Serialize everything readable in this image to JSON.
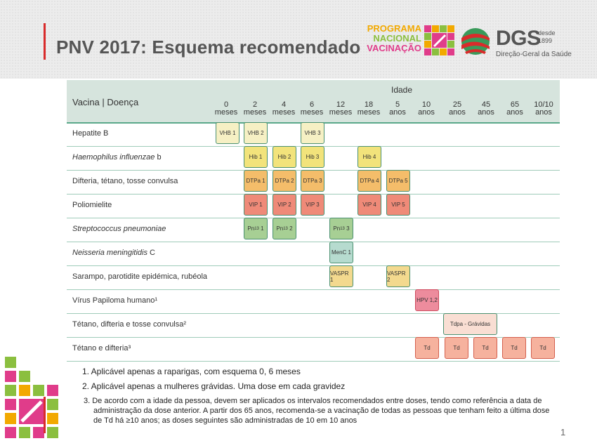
{
  "title": "PNV 2017: Esquema recomendado",
  "logos": {
    "pnv_line1": "PROGRAMA",
    "pnv_line2": "NACIONAL",
    "pnv_line3": "VACINAÇÃO",
    "dgs": "DGS",
    "dgs_desde": "desde",
    "dgs_year": "1899",
    "dgs_sub": "Direção-Geral da Saúde"
  },
  "table": {
    "col_header": "Vacina | Doença",
    "age_header": "Idade",
    "ages": [
      {
        "num": "0",
        "unit": "meses"
      },
      {
        "num": "2",
        "unit": "meses"
      },
      {
        "num": "4",
        "unit": "meses"
      },
      {
        "num": "6",
        "unit": "meses"
      },
      {
        "num": "12",
        "unit": "meses"
      },
      {
        "num": "18",
        "unit": "meses"
      },
      {
        "num": "5",
        "unit": "anos"
      },
      {
        "num": "10",
        "unit": "anos"
      },
      {
        "num": "25",
        "unit": "anos"
      },
      {
        "num": "45",
        "unit": "anos"
      },
      {
        "num": "65",
        "unit": "anos"
      },
      {
        "num": "10/10",
        "unit": "anos"
      }
    ],
    "rows": [
      {
        "label": "Hepatite B",
        "italic": "",
        "suffix": ""
      },
      {
        "label": "",
        "italic": "Haemophilus influenzae",
        "suffix": " b"
      },
      {
        "label": "Difteria, tétano, tosse convulsa",
        "italic": "",
        "suffix": ""
      },
      {
        "label": "Poliomielite",
        "italic": "",
        "suffix": ""
      },
      {
        "label": "",
        "italic": "Streptococcus pneumoniae",
        "suffix": ""
      },
      {
        "label": "",
        "italic": "Neisseria meningitidis",
        "suffix": " C"
      },
      {
        "label": "Sarampo, parotidite epidémica, rubéola",
        "italic": "",
        "suffix": ""
      },
      {
        "label": "Vírus Papiloma humano¹",
        "italic": "",
        "suffix": ""
      },
      {
        "label": "Tétano, difteria e tosse convulsa²",
        "italic": "",
        "suffix": ""
      },
      {
        "label": "Tétano e difteria³",
        "italic": "",
        "suffix": ""
      }
    ],
    "cells": {
      "vhb1": "VHB 1",
      "vhb2": "VHB 2",
      "vhb3": "VHB 3",
      "hib1": "Hib 1",
      "hib2": "Hib 2",
      "hib3": "Hib 3",
      "hib4": "Hib 4",
      "dtpa1": "DTPa 1",
      "dtpa2": "DTPa 2",
      "dtpa3": "DTPa 3",
      "dtpa4": "DTPa 4",
      "dtpa5": "DTPa 5",
      "vip1": "VIP 1",
      "vip2": "VIP 2",
      "vip3": "VIP 3",
      "vip4": "VIP 4",
      "vip5": "VIP 5",
      "pn_base": "Pn",
      "pn_sub": "13",
      "pn1_dose": "1",
      "pn2_dose": "2",
      "pn3_dose": "3",
      "menc1": "MenC 1",
      "vaspr1": "VASPR 1",
      "vaspr2": "VASPR 2",
      "hpv": "HPV 1,2",
      "tdpa": "Tdpa - Grávidas",
      "td": "Td"
    }
  },
  "notes": [
    "1. Aplicável apenas a raparigas, com esquema 0, 6 meses",
    "2. Aplicável apenas a mulheres grávidas. Uma dose em cada gravidez",
    "3. De acordo com a idade da pessoa, devem ser aplicados os intervalos recomendados entre doses, tendo como referência a data de administração da dose anterior. A partir dos 65 anos, recomenda-se a vacinação de todas as pessoas que tenham feito a última dose de Td há ≥10 anos; as doses seguintes são administradas de 10 em 10 anos"
  ],
  "page_number": "1",
  "colors": {
    "accent_red": "#d92b2b",
    "header_bg": "#d6e4dd",
    "row_border": "#9fcbb9"
  }
}
